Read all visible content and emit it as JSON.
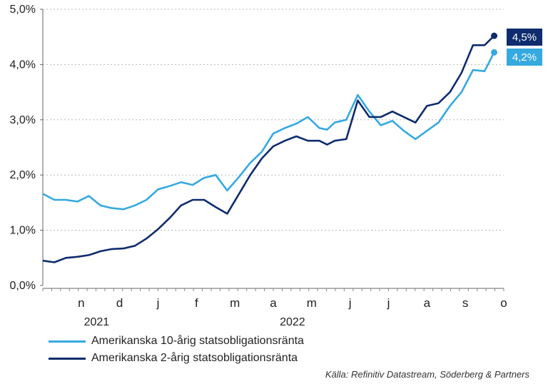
{
  "chart_data": {
    "type": "line",
    "title": "",
    "xlabel": "",
    "ylabel": "",
    "ylim": [
      0,
      5
    ],
    "y_ticks": [
      "0,0%",
      "1,0%",
      "2,0%",
      "3,0%",
      "4,0%",
      "5,0%"
    ],
    "month_labels": [
      "n",
      "d",
      "j",
      "f",
      "m",
      "a",
      "m",
      "j",
      "j",
      "a",
      "s",
      "o"
    ],
    "year_labels": [
      "2021",
      "2022"
    ],
    "grid": "horizontal dotted",
    "legend_position": "bottom-left",
    "x_unit": "months since 2021-10-01",
    "series": [
      {
        "name": "Amerikanska 10-årig statsobligationsränta",
        "color": "#35a9e0",
        "end_label": "4,2%",
        "x": [
          0.0,
          0.3,
          0.6,
          0.9,
          1.2,
          1.5,
          1.8,
          2.1,
          2.4,
          2.7,
          3.0,
          3.3,
          3.6,
          3.9,
          4.2,
          4.5,
          4.8,
          5.1,
          5.4,
          5.7,
          6.0,
          6.3,
          6.6,
          6.9,
          7.2,
          7.4,
          7.6,
          7.9,
          8.2,
          8.5,
          8.8,
          9.1,
          9.4,
          9.7,
          10.0,
          10.3,
          10.6,
          10.9,
          11.2,
          11.5,
          11.75
        ],
        "values": [
          1.66,
          1.55,
          1.55,
          1.52,
          1.62,
          1.45,
          1.4,
          1.38,
          1.45,
          1.55,
          1.74,
          1.8,
          1.87,
          1.82,
          1.95,
          2.0,
          1.72,
          1.96,
          2.22,
          2.42,
          2.75,
          2.85,
          2.93,
          3.05,
          2.85,
          2.82,
          2.95,
          3.0,
          3.45,
          3.15,
          2.9,
          2.98,
          2.8,
          2.65,
          2.8,
          2.95,
          3.25,
          3.5,
          3.9,
          3.88,
          4.22
        ]
      },
      {
        "name": "Amerikanska 2-årig statsobligationsränta",
        "color": "#0e2c6e",
        "end_label": "4,5%",
        "x": [
          0.0,
          0.3,
          0.6,
          0.9,
          1.2,
          1.5,
          1.8,
          2.1,
          2.4,
          2.7,
          3.0,
          3.3,
          3.6,
          3.9,
          4.2,
          4.5,
          4.8,
          5.1,
          5.4,
          5.7,
          6.0,
          6.3,
          6.6,
          6.9,
          7.2,
          7.4,
          7.6,
          7.9,
          8.2,
          8.5,
          8.8,
          9.1,
          9.4,
          9.7,
          10.0,
          10.3,
          10.6,
          10.9,
          11.2,
          11.5,
          11.75
        ],
        "values": [
          0.45,
          0.42,
          0.5,
          0.52,
          0.55,
          0.62,
          0.66,
          0.67,
          0.72,
          0.85,
          1.02,
          1.22,
          1.45,
          1.55,
          1.55,
          1.42,
          1.3,
          1.65,
          2.0,
          2.3,
          2.52,
          2.62,
          2.7,
          2.62,
          2.62,
          2.55,
          2.62,
          2.65,
          3.35,
          3.05,
          3.05,
          3.15,
          3.05,
          2.95,
          3.25,
          3.3,
          3.5,
          3.85,
          4.35,
          4.35,
          4.52
        ]
      }
    ]
  },
  "legend": {
    "items": [
      {
        "label": "Amerikanska 10-årig statsobligationsränta",
        "color": "#35a9e0"
      },
      {
        "label": "Amerikanska 2-årig statsobligationsränta",
        "color": "#0e2c6e"
      }
    ]
  },
  "source": "Källa: Refinitiv Datastream, Söderberg & Partners"
}
